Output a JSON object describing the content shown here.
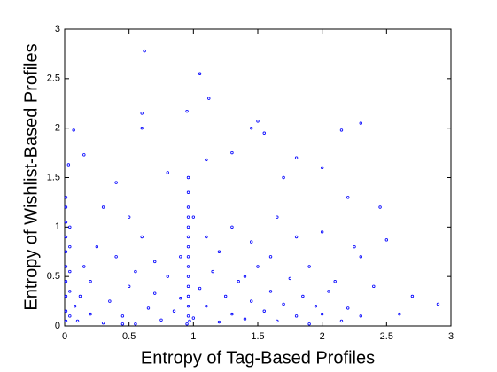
{
  "chart_data": {
    "type": "scatter",
    "x_label": "Entropy of Tag-Based Profiles",
    "y_label": "Entropy of Wishlist-Based Profiles",
    "color": "#0000ff",
    "xlim": [
      0,
      3
    ],
    "ylim": [
      0,
      3
    ],
    "xticks": [
      0,
      0.5,
      1,
      1.5,
      2,
      2.5,
      3
    ],
    "yticks": [
      0,
      0.5,
      1,
      1.5,
      2,
      2.5,
      3
    ],
    "x": [
      0.62,
      1.05,
      1.12,
      0.6,
      0.95,
      0.6,
      0.07,
      1.5,
      1.45,
      2.3,
      2.15,
      1.55,
      0.03,
      0.15,
      1.8,
      1.3,
      1.1,
      0.8,
      2.0,
      1.7,
      0.4,
      2.45,
      2.2,
      2.5,
      2.9,
      2.7,
      2.6,
      2.4,
      2.1,
      2.3,
      0.96,
      0.96,
      0.96,
      0.96,
      0.96,
      0.96,
      0.96,
      0.96,
      0.96,
      0.96,
      0.96,
      0.96,
      0.96,
      0.96,
      0.01,
      0.01,
      0.01,
      0.01,
      0.01,
      0.01,
      0.01,
      0.01,
      0.01,
      0.01,
      0.04,
      0.04,
      0.04,
      0.04,
      0.04,
      0.1,
      0.2,
      0.3,
      0.35,
      0.45,
      0.5,
      0.55,
      0.65,
      0.7,
      0.75,
      0.8,
      0.85,
      0.9,
      1.0,
      1.05,
      1.1,
      1.15,
      1.2,
      1.25,
      1.3,
      1.35,
      1.4,
      1.45,
      1.5,
      1.55,
      1.6,
      1.65,
      1.7,
      1.75,
      1.8,
      1.85,
      1.9,
      1.95,
      2.0,
      2.05,
      2.15,
      2.2,
      2.3,
      0.15,
      0.25,
      0.4,
      0.6,
      0.7,
      1.1,
      1.2,
      1.3,
      1.45,
      1.6,
      1.8,
      0.5,
      0.3,
      0.2,
      0.12,
      0.08,
      0.9,
      1.0,
      1.65,
      1.9,
      2.0,
      2.25,
      0.55,
      0.45,
      1.4,
      0.95,
      0.97
    ],
    "y": [
      2.78,
      2.55,
      2.3,
      2.15,
      2.17,
      2.0,
      1.98,
      2.07,
      2.0,
      2.05,
      1.98,
      1.95,
      1.63,
      1.73,
      1.7,
      1.75,
      1.68,
      1.55,
      1.6,
      1.5,
      1.45,
      1.2,
      1.3,
      0.87,
      0.22,
      0.3,
      0.12,
      0.4,
      0.45,
      0.7,
      0.1,
      0.2,
      0.3,
      0.4,
      0.5,
      0.6,
      0.7,
      0.8,
      0.9,
      1.0,
      1.1,
      1.2,
      1.35,
      1.5,
      0.05,
      0.15,
      0.3,
      0.45,
      0.6,
      0.75,
      0.9,
      1.05,
      1.2,
      1.3,
      0.1,
      0.35,
      0.55,
      0.8,
      1.0,
      0.05,
      0.12,
      0.03,
      0.25,
      0.1,
      0.4,
      0.02,
      0.18,
      0.33,
      0.06,
      0.5,
      0.15,
      0.28,
      0.08,
      0.38,
      0.2,
      0.55,
      0.04,
      0.3,
      0.12,
      0.45,
      0.07,
      0.25,
      0.6,
      0.15,
      0.35,
      0.05,
      0.22,
      0.48,
      0.1,
      0.3,
      0.02,
      0.2,
      0.12,
      0.35,
      0.05,
      0.18,
      0.1,
      0.6,
      0.8,
      0.7,
      0.9,
      0.65,
      0.9,
      0.75,
      1.0,
      0.85,
      0.7,
      0.9,
      1.1,
      1.2,
      0.45,
      0.3,
      0.2,
      0.7,
      1.1,
      1.1,
      0.6,
      0.95,
      0.8,
      0.55,
      0.02,
      0.5,
      0.02,
      0.05
    ]
  }
}
